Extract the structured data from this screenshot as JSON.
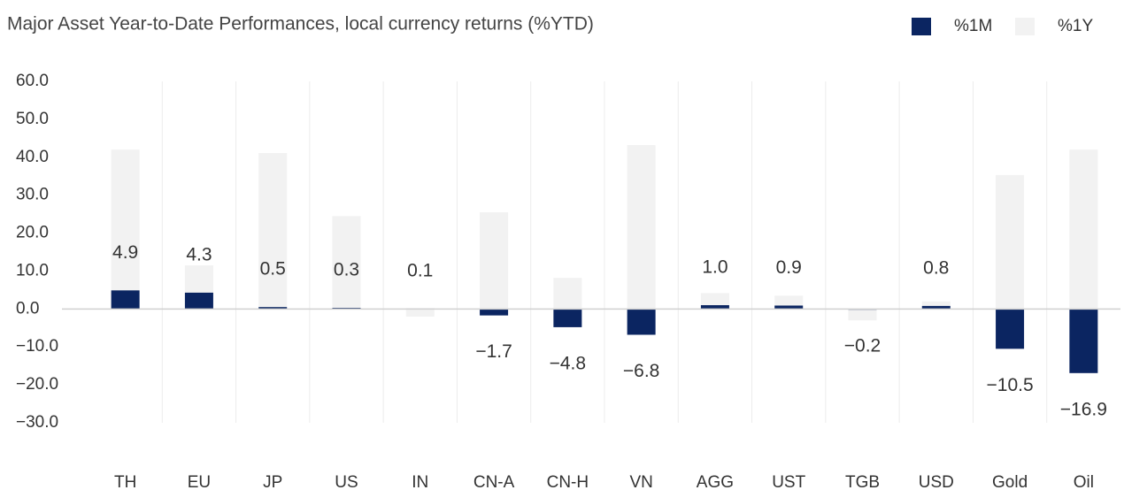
{
  "chart_data": {
    "type": "bar",
    "title": "Major Asset Year-to-Date Performances, local currency returns (%YTD)",
    "categories": [
      "TH",
      "EU",
      "JP",
      "US",
      "IN",
      "CN-A",
      "CN-H",
      "VN",
      "AGG",
      "UST",
      "TGB",
      "USD",
      "Gold",
      "Oil"
    ],
    "series": [
      {
        "name": "%1M",
        "color": "#0b2561",
        "values": [
          4.9,
          4.3,
          0.5,
          0.3,
          0.1,
          -1.7,
          -4.8,
          -6.8,
          1.0,
          0.9,
          -0.2,
          0.8,
          -10.5,
          -16.9
        ],
        "value_labels": [
          "4.9",
          "4.3",
          "0.5",
          "0.3",
          "0.1",
          "−1.7",
          "−4.8",
          "−6.8",
          "1.0",
          "0.9",
          "−0.2",
          "0.8",
          "−10.5",
          "−16.9"
        ]
      },
      {
        "name": "%1Y",
        "color": "#f2f2f2",
        "values": [
          42.0,
          11.5,
          41.1,
          24.5,
          -2.0,
          25.5,
          8.2,
          43.2,
          4.2,
          3.5,
          -3.0,
          2.0,
          35.3,
          42.0
        ]
      }
    ],
    "ylim": [
      -30,
      60
    ],
    "yticks": [
      {
        "value": -30,
        "label": "−30.0"
      },
      {
        "value": -20,
        "label": "−20.0"
      },
      {
        "value": -10,
        "label": "−10.0"
      },
      {
        "value": 0,
        "label": "0.0"
      },
      {
        "value": 10,
        "label": "10.0"
      },
      {
        "value": 20,
        "label": "20.0"
      },
      {
        "value": 30,
        "label": "30.0"
      },
      {
        "value": 40,
        "label": "40.0"
      },
      {
        "value": 50,
        "label": "50.0"
      },
      {
        "value": 60,
        "label": "60.0"
      }
    ],
    "legend": "top-right"
  }
}
